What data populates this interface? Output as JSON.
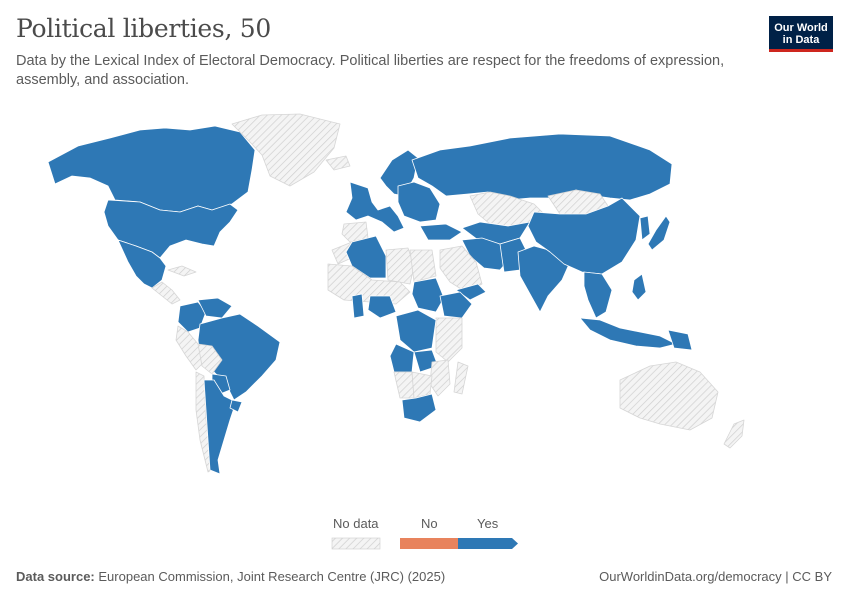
{
  "title": "Political liberties, 50",
  "subtitle": "Data by the Lexical Index of Electoral Democracy. Political liberties are respect for the freedoms of expression, assembly, and association.",
  "logo": {
    "line1": "Our World",
    "line2": "in Data"
  },
  "legend": {
    "no_data_label": "No data",
    "no_label": "No",
    "yes_label": "Yes"
  },
  "colors": {
    "yes": "#2e78b5",
    "no": "#e8835d",
    "no_data": "#e8e8e8",
    "border": "#ffffff"
  },
  "map_data": {
    "type": "choropleth",
    "values": {
      "Canada": "Yes",
      "United States": "Yes",
      "Mexico": "Yes",
      "Greenland": "No data",
      "Central America": "No data",
      "Cuba": "No data",
      "Colombia": "Yes",
      "Venezuela": "Yes",
      "Brazil": "Yes",
      "Peru": "No data",
      "Bolivia": "No data",
      "Paraguay": "Yes",
      "Argentina": "Yes",
      "Chile": "No data",
      "Uruguay": "Yes",
      "Western Europe": "Yes",
      "Scandinavia": "Yes",
      "Iceland": "No data",
      "Spain": "No data",
      "Eastern Europe": "Yes",
      "Russia": "Yes",
      "Turkey": "Yes",
      "Morocco": "No data",
      "Algeria": "Yes",
      "Libya": "No data",
      "Egypt": "No data",
      "Sudan": "Yes",
      "Ethiopia": "Yes",
      "Nigeria": "Yes",
      "Ghana": "Yes",
      "Sahel": "No data",
      "Saudi Arabia": "No data",
      "Yemen": "Yes",
      "Congo": "Yes",
      "Angola": "Yes",
      "Zambia": "Yes",
      "East Africa": "No data",
      "Namibia": "No data",
      "Botswana": "No data",
      "Mozambique": "No data",
      "Madagascar": "No data",
      "South Africa": "Yes",
      "Kazakhstan": "No data",
      "Mongolia": "No data",
      "Central Asia": "Yes",
      "Iran": "Yes",
      "Pakistan": "Yes",
      "India": "Yes",
      "China": "Yes",
      "Japan": "Yes",
      "Korea": "Yes",
      "Southeast Asia": "Yes",
      "Philippines": "Yes",
      "Indonesia": "Yes",
      "Papua New Guinea": "Yes",
      "Australia": "No data",
      "New Zealand": "No data"
    }
  },
  "footer": {
    "source_label": "Data source:",
    "source_text": "European Commission, Joint Research Centre (JRC) (2025)",
    "url": "OurWorldinData.org/democracy | CC BY"
  }
}
